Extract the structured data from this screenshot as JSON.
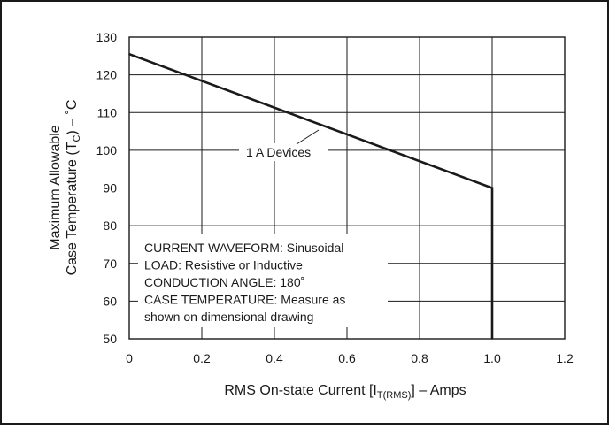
{
  "chart_data": {
    "type": "line",
    "title": "",
    "xlabel": {
      "main": "RMS On-state Current [I",
      "sub": "T(RMS)",
      "tail": "] – Amps"
    },
    "ylabel": {
      "line1": "Maximum Allowable",
      "line2_main": "Case Temperature (T",
      "line2_sub": "C",
      "line2_tail": ") – ˚C"
    },
    "xlim": [
      0,
      1.2
    ],
    "ylim": [
      50,
      130
    ],
    "xticks": [
      "0",
      "0.2",
      "0.4",
      "0.6",
      "0.8",
      "1.0",
      "1.2"
    ],
    "yticks": [
      "50",
      "60",
      "70",
      "80",
      "90",
      "100",
      "110",
      "120",
      "130"
    ],
    "grid": true,
    "series": [
      {
        "name": "1 A Devices",
        "x": [
          0,
          1.0,
          1.0
        ],
        "y": [
          125.5,
          90,
          50
        ]
      }
    ],
    "annotations": {
      "series_label": "1 A Devices",
      "conditions": [
        "CURRENT WAVEFORM: Sinusoidal",
        "LOAD: Resistive or Inductive",
        "CONDUCTION ANGLE: 180˚",
        "CASE TEMPERATURE: Measure as",
        "shown on dimensional drawing"
      ]
    }
  }
}
